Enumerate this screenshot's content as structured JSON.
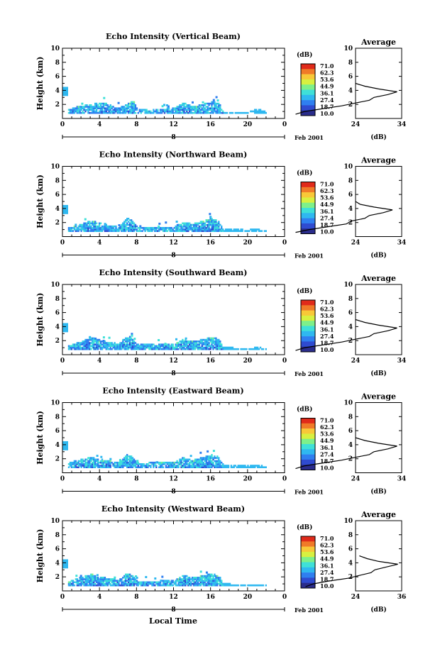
{
  "colors": {
    "scale": [
      "#2a2c8c",
      "#2f4bd0",
      "#2f7ff0",
      "#2fb8f0",
      "#3fe0d8",
      "#7ef08a",
      "#d8f040",
      "#f8c838",
      "#f07a28",
      "#e02a1a"
    ]
  },
  "figure": {
    "xlabel": "Local Time",
    "date_label": "Feb 2001",
    "day_label": "8",
    "ylabel": "Height (km)",
    "colorbar_unit": "(dB)",
    "colorbar_ticks": [
      "71.0",
      "62.3",
      "53.6",
      "44.9",
      "36.1",
      "27.4",
      "18.7",
      "10.0"
    ],
    "colorbar_values": [
      71.0,
      62.3,
      53.6,
      44.9,
      36.1,
      27.4,
      18.7,
      10.0
    ],
    "x_ticks": [
      "0",
      "4",
      "8",
      "12",
      "16",
      "20",
      "0"
    ],
    "y_ticks": [
      "2",
      "4",
      "6",
      "8",
      "10"
    ],
    "average_title": "Average",
    "average_xlabel": "(dB)"
  },
  "chart_data": [
    {
      "type": "heatmap",
      "title": "Echo Intensity (Vertical Beam)",
      "xlabel": "Local Time",
      "ylabel": "Height (km)",
      "xlim": [
        0,
        24
      ],
      "ylim": [
        0,
        10
      ],
      "profile": [
        [
          0.6,
          11
        ],
        [
          1.0,
          13
        ],
        [
          1.4,
          17
        ],
        [
          1.8,
          21
        ],
        [
          2.2,
          24
        ],
        [
          2.6,
          27
        ],
        [
          3.0,
          28
        ],
        [
          3.4,
          31
        ],
        [
          3.8,
          33
        ],
        [
          4.2,
          29
        ],
        [
          4.6,
          26
        ],
        [
          5.0,
          24
        ]
      ],
      "profile_xlim": [
        24,
        34
      ],
      "profile_xticks": [
        "24",
        "34"
      ],
      "ceiling": [
        [
          0.6,
          1.2
        ],
        [
          1.5,
          1.6
        ],
        [
          3,
          2.0
        ],
        [
          4.6,
          2.1
        ],
        [
          6,
          1.4
        ],
        [
          7,
          2.0
        ],
        [
          7.6,
          2.5
        ],
        [
          8,
          1.2
        ],
        [
          12,
          1.4
        ],
        [
          13,
          2.2
        ],
        [
          14,
          1.6
        ],
        [
          16,
          2.3
        ],
        [
          16.8,
          2.2
        ],
        [
          17.3,
          0.9
        ],
        [
          20,
          0.8
        ],
        [
          21,
          1.3
        ],
        [
          22,
          0.9
        ]
      ]
    },
    {
      "type": "heatmap",
      "title": "Echo Intensity (Northward Beam)",
      "xlabel": "Local Time",
      "ylabel": "Height (km)",
      "xlim": [
        0,
        24
      ],
      "ylim": [
        0,
        10
      ],
      "profile": [
        [
          0.6,
          11
        ],
        [
          1.0,
          14
        ],
        [
          1.4,
          18
        ],
        [
          1.8,
          22
        ],
        [
          2.2,
          23
        ],
        [
          2.6,
          26
        ],
        [
          3.0,
          27
        ],
        [
          3.4,
          30
        ],
        [
          3.8,
          32
        ],
        [
          4.2,
          28
        ],
        [
          4.6,
          25
        ],
        [
          5.0,
          24
        ]
      ],
      "profile_xlim": [
        24,
        34
      ],
      "profile_xticks": [
        "24",
        "34"
      ],
      "ceiling": [
        [
          0.6,
          1.2
        ],
        [
          1.5,
          1.5
        ],
        [
          3,
          2.2
        ],
        [
          4.6,
          1.6
        ],
        [
          6,
          1.3
        ],
        [
          7,
          2.6
        ],
        [
          7.6,
          2.1
        ],
        [
          8,
          1.3
        ],
        [
          12,
          1.3
        ],
        [
          13,
          2.0
        ],
        [
          14,
          1.7
        ],
        [
          16,
          2.5
        ],
        [
          16.8,
          2.1
        ],
        [
          17.3,
          1.0
        ],
        [
          20,
          0.9
        ],
        [
          21,
          1.0
        ],
        [
          22,
          0.7
        ]
      ]
    },
    {
      "type": "heatmap",
      "title": "Echo Intensity (Southward Beam)",
      "xlabel": "Local Time",
      "ylabel": "Height (km)",
      "xlim": [
        0,
        24
      ],
      "ylim": [
        0,
        10
      ],
      "profile": [
        [
          0.6,
          11
        ],
        [
          1.0,
          13
        ],
        [
          1.4,
          17
        ],
        [
          1.8,
          21
        ],
        [
          2.2,
          24
        ],
        [
          2.6,
          27
        ],
        [
          3.0,
          28
        ],
        [
          3.4,
          31
        ],
        [
          3.8,
          33
        ],
        [
          4.2,
          29
        ],
        [
          4.6,
          26
        ],
        [
          5.0,
          24
        ]
      ],
      "profile_xlim": [
        24,
        34
      ],
      "profile_xticks": [
        "24",
        "34"
      ],
      "ceiling": [
        [
          0.6,
          1.2
        ],
        [
          1.5,
          1.6
        ],
        [
          3,
          2.4
        ],
        [
          4.6,
          1.8
        ],
        [
          6,
          1.5
        ],
        [
          7,
          2.7
        ],
        [
          7.6,
          2.1
        ],
        [
          8,
          1.4
        ],
        [
          12,
          1.4
        ],
        [
          13,
          2.1
        ],
        [
          14,
          1.8
        ],
        [
          16,
          2.4
        ],
        [
          16.8,
          2.2
        ],
        [
          17.3,
          1.0
        ],
        [
          20,
          0.8
        ],
        [
          21,
          1.0
        ],
        [
          22,
          0.8
        ]
      ]
    },
    {
      "type": "heatmap",
      "title": "Echo Intensity (Eastward Beam)",
      "xlabel": "Local Time",
      "ylabel": "Height (km)",
      "xlim": [
        0,
        24
      ],
      "ylim": [
        0,
        10
      ],
      "profile": [
        [
          0.6,
          11
        ],
        [
          1.0,
          13
        ],
        [
          1.4,
          17
        ],
        [
          1.8,
          21
        ],
        [
          2.2,
          24
        ],
        [
          2.6,
          27
        ],
        [
          3.0,
          28
        ],
        [
          3.4,
          31
        ],
        [
          3.8,
          33
        ],
        [
          4.2,
          29
        ],
        [
          4.6,
          26
        ],
        [
          5.0,
          24
        ]
      ],
      "profile_xlim": [
        24,
        34
      ],
      "profile_xticks": [
        "24",
        "34"
      ],
      "ceiling": [
        [
          0.6,
          1.3
        ],
        [
          1.5,
          1.8
        ],
        [
          3,
          2.1
        ],
        [
          4.6,
          1.7
        ],
        [
          6,
          1.4
        ],
        [
          7,
          2.6
        ],
        [
          7.6,
          2.0
        ],
        [
          8,
          1.3
        ],
        [
          12,
          1.5
        ],
        [
          13,
          2.1
        ],
        [
          14,
          1.7
        ],
        [
          16,
          2.5
        ],
        [
          16.8,
          2.3
        ],
        [
          17.3,
          1.1
        ],
        [
          20,
          1.0
        ],
        [
          21,
          1.1
        ],
        [
          22,
          0.8
        ]
      ]
    },
    {
      "type": "heatmap",
      "title": "Echo Intensity (Westward Beam)",
      "xlabel": "Local Time",
      "ylabel": "Height (km)",
      "xlim": [
        0,
        24
      ],
      "ylim": [
        0,
        10
      ],
      "profile": [
        [
          0.6,
          11
        ],
        [
          1.0,
          13
        ],
        [
          1.4,
          17
        ],
        [
          1.8,
          22
        ],
        [
          2.2,
          25
        ],
        [
          2.6,
          28
        ],
        [
          3.0,
          29
        ],
        [
          3.4,
          32
        ],
        [
          3.8,
          35
        ],
        [
          4.2,
          30
        ],
        [
          4.6,
          27
        ],
        [
          5.0,
          25
        ]
      ],
      "profile_xlim": [
        24,
        36
      ],
      "profile_xticks": [
        "24",
        "36"
      ],
      "ceiling": [
        [
          0.6,
          1.2
        ],
        [
          1.5,
          1.7
        ],
        [
          3,
          2.3
        ],
        [
          4.6,
          1.8
        ],
        [
          6,
          1.5
        ],
        [
          7,
          2.5
        ],
        [
          7.6,
          2.0
        ],
        [
          8,
          1.3
        ],
        [
          12,
          1.4
        ],
        [
          13,
          2.2
        ],
        [
          14,
          1.8
        ],
        [
          16,
          2.4
        ],
        [
          16.8,
          2.2
        ],
        [
          17.3,
          1.0
        ],
        [
          20,
          0.7
        ],
        [
          21,
          0.9
        ],
        [
          22,
          0.7
        ]
      ]
    }
  ]
}
